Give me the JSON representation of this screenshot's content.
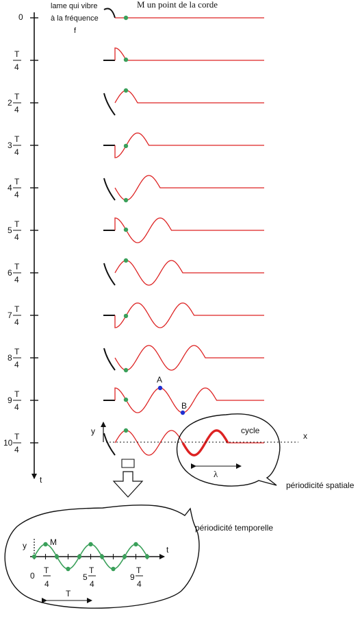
{
  "header": {
    "blade_label_line1": "lame qui vibre",
    "blade_label_line2": "à la fréquence",
    "blade_label_line3": "f",
    "point_label": "M un point de la corde"
  },
  "time_axis": {
    "axis_label": "t",
    "zero_label": "0",
    "fraction_denominator": "4",
    "fraction_symbol": "T",
    "ticks": [
      {
        "coef": ""
      },
      {
        "coef": "2"
      },
      {
        "coef": "3"
      },
      {
        "coef": "4"
      },
      {
        "coef": "5"
      },
      {
        "coef": "6"
      },
      {
        "coef": "7"
      },
      {
        "coef": "8"
      },
      {
        "coef": "9"
      },
      {
        "coef": "10"
      }
    ]
  },
  "snapshot_labels": {
    "crest_point": "A",
    "trough_point": "B"
  },
  "spatial_panel": {
    "y_label": "y",
    "x_label": "x",
    "cycle_label": "cycle",
    "wavelength_label": "λ",
    "caption": "périodicité spatiale"
  },
  "temporal_panel": {
    "caption": "périodicité temporelle",
    "y_label": "y",
    "t_label": "t",
    "m_label": "M",
    "origin_label": "0",
    "tick_coef_2": "5",
    "tick_coef_3": "9",
    "fraction_symbol": "T",
    "fraction_denominator": "4",
    "period_label": "T"
  },
  "colors": {
    "wave": "#dd2222",
    "point_m": "#3aa05a",
    "points_ab": "#1f2fd0",
    "ink": "#111111"
  }
}
